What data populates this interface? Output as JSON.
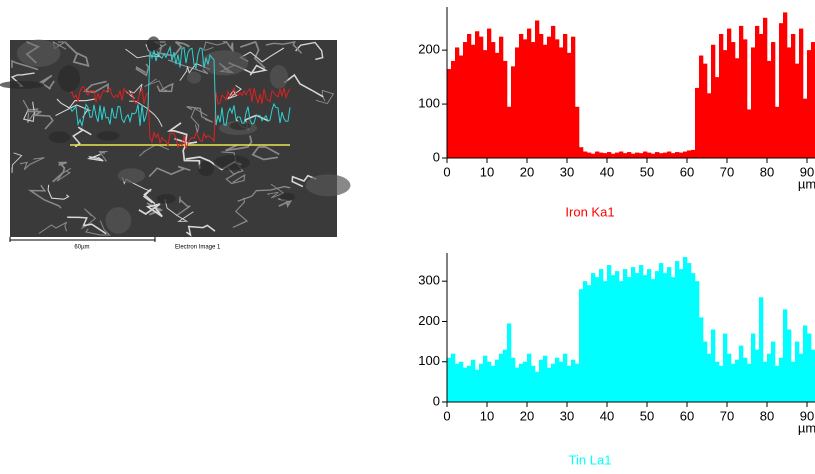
{
  "image": {
    "scale_bar": "60µm",
    "caption": "Electron Image 1"
  },
  "chart_data": [
    {
      "type": "bar",
      "title": "Iron Ka1",
      "xlabel": "µm",
      "color": "#ff0000",
      "x": [
        0,
        1,
        2,
        3,
        4,
        5,
        6,
        7,
        8,
        9,
        10,
        11,
        12,
        13,
        14,
        15,
        16,
        17,
        18,
        19,
        20,
        21,
        22,
        23,
        24,
        25,
        26,
        27,
        28,
        29,
        30,
        31,
        32,
        33,
        34,
        35,
        36,
        37,
        38,
        39,
        40,
        41,
        42,
        43,
        44,
        45,
        46,
        47,
        48,
        49,
        50,
        51,
        52,
        53,
        54,
        55,
        56,
        57,
        58,
        59,
        60,
        61,
        62,
        63,
        64,
        65,
        66,
        67,
        68,
        69,
        70,
        71,
        72,
        73,
        74,
        75,
        76,
        77,
        78,
        79,
        80,
        81,
        82,
        83,
        84,
        85,
        86,
        87,
        88,
        89,
        90,
        91
      ],
      "values": [
        165,
        180,
        205,
        190,
        215,
        230,
        210,
        235,
        225,
        200,
        240,
        215,
        195,
        225,
        180,
        95,
        170,
        205,
        230,
        220,
        240,
        215,
        255,
        230,
        210,
        225,
        245,
        220,
        205,
        230,
        195,
        225,
        95,
        20,
        12,
        10,
        8,
        12,
        10,
        9,
        11,
        8,
        10,
        12,
        9,
        11,
        8,
        10,
        9,
        12,
        10,
        8,
        11,
        9,
        10,
        12,
        9,
        11,
        10,
        12,
        14,
        15,
        130,
        190,
        175,
        120,
        210,
        150,
        230,
        200,
        240,
        215,
        185,
        245,
        220,
        90,
        205,
        245,
        230,
        260,
        180,
        215,
        95,
        250,
        270,
        205,
        230,
        175,
        240,
        110,
        200,
        215
      ],
      "xlim": [
        0,
        92
      ],
      "xticks": [
        0,
        10,
        20,
        30,
        40,
        50,
        60,
        70,
        80,
        90
      ],
      "ylim": [
        0,
        280
      ],
      "yticks": [
        0,
        100,
        200
      ]
    },
    {
      "type": "bar",
      "title": "Tin La1",
      "xlabel": "µm",
      "color": "#00ffff",
      "x": [
        0,
        1,
        2,
        3,
        4,
        5,
        6,
        7,
        8,
        9,
        10,
        11,
        12,
        13,
        14,
        15,
        16,
        17,
        18,
        19,
        20,
        21,
        22,
        23,
        24,
        25,
        26,
        27,
        28,
        29,
        30,
        31,
        32,
        33,
        34,
        35,
        36,
        37,
        38,
        39,
        40,
        41,
        42,
        43,
        44,
        45,
        46,
        47,
        48,
        49,
        50,
        51,
        52,
        53,
        54,
        55,
        56,
        57,
        58,
        59,
        60,
        61,
        62,
        63,
        64,
        65,
        66,
        67,
        68,
        69,
        70,
        71,
        72,
        73,
        74,
        75,
        76,
        77,
        78,
        79,
        80,
        81,
        82,
        83,
        84,
        85,
        86,
        87,
        88,
        89,
        90,
        91
      ],
      "values": [
        110,
        120,
        95,
        100,
        85,
        90,
        105,
        80,
        95,
        115,
        100,
        90,
        105,
        120,
        130,
        195,
        110,
        85,
        95,
        100,
        120,
        90,
        75,
        105,
        115,
        85,
        95,
        110,
        100,
        120,
        90,
        105,
        95,
        280,
        300,
        290,
        320,
        310,
        330,
        300,
        340,
        315,
        325,
        300,
        330,
        310,
        335,
        320,
        340,
        315,
        330,
        305,
        325,
        345,
        320,
        335,
        310,
        350,
        330,
        360,
        345,
        320,
        300,
        210,
        150,
        120,
        180,
        100,
        90,
        170,
        120,
        95,
        105,
        140,
        110,
        95,
        170,
        130,
        260,
        100,
        120,
        150,
        90,
        110,
        230,
        180,
        100,
        150,
        120,
        190,
        170,
        130
      ],
      "xlim": [
        0,
        92
      ],
      "xticks": [
        0,
        10,
        20,
        30,
        40,
        50,
        60,
        70,
        80,
        90
      ],
      "ylim": [
        0,
        370
      ],
      "yticks": [
        0,
        100,
        200,
        300
      ]
    }
  ]
}
